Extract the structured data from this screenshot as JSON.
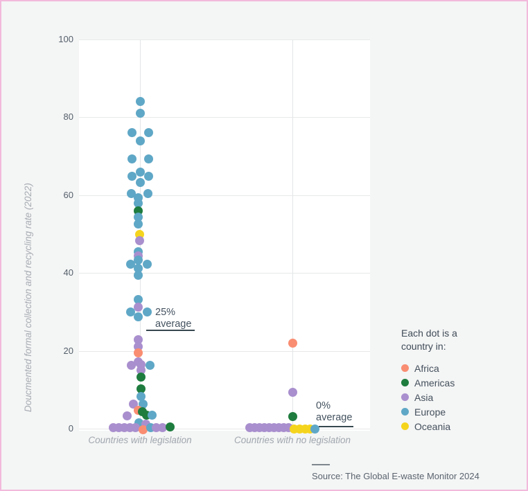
{
  "chart_data": {
    "type": "scatter",
    "subtype": "beeswarm-strip",
    "title": "",
    "ylabel": "Doucmented formal collection and recycling rate (2022)",
    "xlabel": "",
    "ylim": [
      0,
      100
    ],
    "yticks": [
      0,
      20,
      40,
      60,
      80,
      100
    ],
    "grid": true,
    "legend_position": "right",
    "categories": [
      "Countries with legislation",
      "Countries with no legislation"
    ],
    "annotations": [
      {
        "line1": "25%",
        "line2": "average",
        "value": 25,
        "category": "Countries with legislation"
      },
      {
        "line1": "0%",
        "line2": "average",
        "value": 0,
        "category": "Countries with no legislation"
      }
    ],
    "groups": [
      {
        "category": "Countries with legislation",
        "average": 25,
        "dots": [
          {
            "dx": 0,
            "v": 84,
            "r": "Europe"
          },
          {
            "dx": 0,
            "v": 81,
            "r": "Europe"
          },
          {
            "dx": -12,
            "v": 76,
            "r": "Europe"
          },
          {
            "dx": 12,
            "v": 76,
            "r": "Europe"
          },
          {
            "dx": 0,
            "v": 74,
            "r": "Europe"
          },
          {
            "dx": -12,
            "v": 69.3,
            "r": "Europe"
          },
          {
            "dx": 12,
            "v": 69.3,
            "r": "Europe"
          },
          {
            "dx": 0,
            "v": 66,
            "r": "Europe"
          },
          {
            "dx": -12,
            "v": 64.9,
            "r": "Europe"
          },
          {
            "dx": 12,
            "v": 64.9,
            "r": "Europe"
          },
          {
            "dx": 0,
            "v": 63.2,
            "r": "Europe"
          },
          {
            "dx": -13,
            "v": 60.4,
            "r": "Europe"
          },
          {
            "dx": 11,
            "v": 60.4,
            "r": "Europe"
          },
          {
            "dx": -3,
            "v": 59.4,
            "r": "Europe"
          },
          {
            "dx": -3,
            "v": 57.9,
            "r": "Europe"
          },
          {
            "dx": -3,
            "v": 55.9,
            "r": "Americas"
          },
          {
            "dx": -3,
            "v": 54.3,
            "r": "Europe"
          },
          {
            "dx": -3,
            "v": 52.6,
            "r": "Europe"
          },
          {
            "dx": -1,
            "v": 50,
            "r": "Oceania"
          },
          {
            "dx": -1,
            "v": 48.3,
            "r": "Asia"
          },
          {
            "dx": -3,
            "v": 45.4,
            "r": "Europe"
          },
          {
            "dx": -3,
            "v": 44.4,
            "r": "Asia"
          },
          {
            "dx": -3,
            "v": 43.4,
            "r": "Europe"
          },
          {
            "dx": -14,
            "v": 42.2,
            "r": "Europe"
          },
          {
            "dx": 10,
            "v": 42.2,
            "r": "Europe"
          },
          {
            "dx": -3,
            "v": 41.2,
            "r": "Europe"
          },
          {
            "dx": -3,
            "v": 39.5,
            "r": "Europe"
          },
          {
            "dx": -3,
            "v": 33.1,
            "r": "Europe"
          },
          {
            "dx": -3,
            "v": 31.2,
            "r": "Asia"
          },
          {
            "dx": -14,
            "v": 29.9,
            "r": "Europe"
          },
          {
            "dx": 10,
            "v": 29.9,
            "r": "Europe"
          },
          {
            "dx": -3,
            "v": 28.8,
            "r": "Europe"
          },
          {
            "dx": -3,
            "v": 22.9,
            "r": "Asia"
          },
          {
            "dx": -3,
            "v": 21.1,
            "r": "Asia"
          },
          {
            "dx": -3,
            "v": 19.5,
            "r": "Africa"
          },
          {
            "dx": -3,
            "v": 17.2,
            "r": "Asia"
          },
          {
            "dx": -13,
            "v": 16.2,
            "r": "Asia"
          },
          {
            "dx": 1,
            "v": 16.4,
            "r": "Asia"
          },
          {
            "dx": 14,
            "v": 16.3,
            "r": "Europe"
          },
          {
            "dx": 1,
            "v": 15,
            "r": "Asia"
          },
          {
            "dx": 1,
            "v": 13.3,
            "r": "Americas"
          },
          {
            "dx": 1,
            "v": 10.2,
            "r": "Americas"
          },
          {
            "dx": 1,
            "v": 8.3,
            "r": "Europe"
          },
          {
            "dx": -10,
            "v": 6.3,
            "r": "Asia"
          },
          {
            "dx": 4,
            "v": 6.3,
            "r": "Europe"
          },
          {
            "dx": -3,
            "v": 4.8,
            "r": "Africa"
          },
          {
            "dx": 3,
            "v": 4.4,
            "r": "Americas"
          },
          {
            "dx": -19,
            "v": 3.3,
            "r": "Asia"
          },
          {
            "dx": 9,
            "v": 3.5,
            "r": "Americas"
          },
          {
            "dx": 17,
            "v": 3.4,
            "r": "Europe"
          },
          {
            "dx": -2,
            "v": 1.5,
            "r": "Europe"
          },
          {
            "dx": 8,
            "v": 1.2,
            "r": "Asia"
          },
          {
            "dx": -39,
            "v": 0.2,
            "r": "Asia"
          },
          {
            "dx": -31,
            "v": 0.2,
            "r": "Asia"
          },
          {
            "dx": -23,
            "v": 0.2,
            "r": "Asia"
          },
          {
            "dx": -15,
            "v": 0.2,
            "r": "Asia"
          },
          {
            "dx": -7,
            "v": 0.2,
            "r": "Asia"
          },
          {
            "dx": 4,
            "v": -0.3,
            "r": "Africa"
          },
          {
            "dx": 15,
            "v": 0.2,
            "r": "Europe"
          },
          {
            "dx": 23,
            "v": 0.2,
            "r": "Asia"
          },
          {
            "dx": 32,
            "v": 0.2,
            "r": "Asia"
          },
          {
            "dx": 43,
            "v": 0.5,
            "r": "Americas"
          }
        ]
      },
      {
        "category": "Countries with no legislation",
        "average": 0,
        "dots": [
          {
            "dx": 0,
            "v": 22,
            "r": "Africa"
          },
          {
            "dx": 0,
            "v": 9.3,
            "r": "Asia"
          },
          {
            "dx": 0,
            "v": 3.2,
            "r": "Americas"
          },
          {
            "dx": -62,
            "v": 0.2,
            "r": "Asia"
          },
          {
            "dx": -55,
            "v": 0.2,
            "r": "Asia"
          },
          {
            "dx": -48,
            "v": 0.2,
            "r": "Asia"
          },
          {
            "dx": -41,
            "v": 0.2,
            "r": "Asia"
          },
          {
            "dx": -34,
            "v": 0.2,
            "r": "Asia"
          },
          {
            "dx": -27,
            "v": 0.2,
            "r": "Asia"
          },
          {
            "dx": -20,
            "v": 0.2,
            "r": "Asia"
          },
          {
            "dx": -13,
            "v": 0.2,
            "r": "Asia"
          },
          {
            "dx": -6,
            "v": 0.2,
            "r": "Asia"
          },
          {
            "dx": 2,
            "v": 0,
            "r": "Oceania"
          },
          {
            "dx": 10,
            "v": 0,
            "r": "Oceania"
          },
          {
            "dx": 18,
            "v": 0,
            "r": "Oceania"
          },
          {
            "dx": 25,
            "v": 0,
            "r": "Oceania"
          },
          {
            "dx": 32,
            "v": 0,
            "r": "Europe"
          }
        ]
      }
    ]
  },
  "legend": {
    "title": "Each dot is a country in:",
    "items": [
      {
        "label": "Africa",
        "color": "#F98D72"
      },
      {
        "label": "Americas",
        "color": "#1E7C3E"
      },
      {
        "label": "Asia",
        "color": "#A98FCE"
      },
      {
        "label": "Europe",
        "color": "#5FA7C6"
      },
      {
        "label": "Oceania",
        "color": "#F5D41D"
      }
    ]
  },
  "source": {
    "text": "Source: The Global E-waste Monitor 2024"
  },
  "colors": {
    "background": "#F4F5F5",
    "plot_background": "#FFFFFF",
    "gridline": "#E7E8E8",
    "annotation_line": "#36474F",
    "frame_border": "#F2B9DC"
  }
}
